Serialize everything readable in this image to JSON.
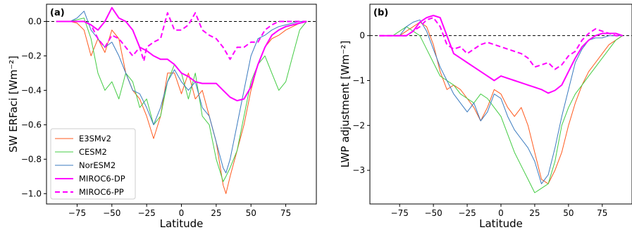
{
  "chart_data": [
    {
      "type": "line",
      "panel_label": "(a)",
      "xlabel": "Latitude",
      "ylabel": "SW ERFaci [Wm⁻²]",
      "xlim": [
        -97,
        97
      ],
      "ylim": [
        -1.06,
        0.1
      ],
      "xticks": [
        -75,
        -50,
        -25,
        0,
        25,
        50,
        75
      ],
      "xtick_labels": [
        "−75",
        "−50",
        "−25",
        "0",
        "25",
        "50",
        "75"
      ],
      "yticks": [
        0.0,
        -0.2,
        -0.4,
        -0.6,
        -0.8,
        -1.0
      ],
      "ytick_labels": [
        "0.0",
        "−0.2",
        "−0.4",
        "−0.6",
        "−0.8",
        "−1.0"
      ],
      "zero_line": true,
      "legend": "lower-left",
      "series": [
        {
          "name": "E3SMv2",
          "color": "#ff5a1e",
          "style": "solid",
          "width": 1,
          "x": [
            -90,
            -80,
            -75,
            -70,
            -65,
            -60,
            -55,
            -50,
            -45,
            -40,
            -35,
            -30,
            -25,
            -20,
            -15,
            -10,
            -5,
            0,
            5,
            10,
            15,
            20,
            25,
            30,
            32,
            35,
            40,
            45,
            50,
            55,
            60,
            65,
            70,
            75,
            80,
            85,
            90
          ],
          "y": [
            0,
            0,
            -0.01,
            -0.05,
            -0.2,
            -0.1,
            -0.18,
            -0.05,
            -0.1,
            -0.3,
            -0.4,
            -0.45,
            -0.55,
            -0.68,
            -0.55,
            -0.3,
            -0.3,
            -0.42,
            -0.3,
            -0.45,
            -0.4,
            -0.55,
            -0.7,
            -0.95,
            -1.0,
            -0.9,
            -0.75,
            -0.6,
            -0.4,
            -0.25,
            -0.15,
            -0.1,
            -0.08,
            -0.05,
            -0.03,
            -0.01,
            0
          ]
        },
        {
          "name": "CESM2",
          "color": "#44cc44",
          "style": "solid",
          "width": 1,
          "x": [
            -90,
            -80,
            -75,
            -70,
            -65,
            -60,
            -55,
            -50,
            -45,
            -40,
            -35,
            -30,
            -25,
            -20,
            -15,
            -10,
            -5,
            0,
            5,
            10,
            15,
            20,
            25,
            30,
            32,
            35,
            40,
            45,
            50,
            55,
            60,
            65,
            70,
            75,
            80,
            85,
            90
          ],
          "y": [
            0,
            0,
            0.01,
            0.02,
            -0.1,
            -0.3,
            -0.4,
            -0.35,
            -0.45,
            -0.3,
            -0.35,
            -0.5,
            -0.45,
            -0.6,
            -0.55,
            -0.35,
            -0.25,
            -0.3,
            -0.45,
            -0.3,
            -0.55,
            -0.6,
            -0.8,
            -0.93,
            -0.9,
            -0.85,
            -0.75,
            -0.55,
            -0.35,
            -0.25,
            -0.2,
            -0.3,
            -0.4,
            -0.35,
            -0.2,
            -0.05,
            0
          ]
        },
        {
          "name": "NorESM2",
          "color": "#3a7abf",
          "style": "solid",
          "width": 1,
          "x": [
            -90,
            -80,
            -75,
            -70,
            -65,
            -60,
            -55,
            -50,
            -45,
            -40,
            -35,
            -30,
            -25,
            -20,
            -15,
            -10,
            -5,
            0,
            5,
            10,
            15,
            20,
            25,
            30,
            32,
            35,
            40,
            45,
            50,
            55,
            60,
            65,
            70,
            75,
            80,
            85,
            90
          ],
          "y": [
            0,
            0,
            0.02,
            0.06,
            -0.05,
            -0.1,
            -0.15,
            -0.12,
            -0.2,
            -0.3,
            -0.4,
            -0.42,
            -0.5,
            -0.6,
            -0.5,
            -0.35,
            -0.28,
            -0.35,
            -0.4,
            -0.35,
            -0.5,
            -0.55,
            -0.7,
            -0.85,
            -0.88,
            -0.8,
            -0.6,
            -0.4,
            -0.2,
            -0.1,
            -0.08,
            -0.05,
            -0.03,
            -0.02,
            -0.01,
            0,
            0
          ]
        },
        {
          "name": "MIROC6-DP",
          "color": "#ff00ff",
          "style": "solid",
          "width": 2,
          "x": [
            -90,
            -80,
            -75,
            -70,
            -65,
            -60,
            -55,
            -50,
            -45,
            -40,
            -35,
            -30,
            -25,
            -20,
            -15,
            -10,
            -5,
            0,
            5,
            10,
            15,
            20,
            25,
            30,
            35,
            40,
            45,
            50,
            55,
            60,
            65,
            70,
            75,
            80,
            85,
            90
          ],
          "y": [
            0,
            0,
            0,
            0,
            -0.02,
            -0.05,
            0.0,
            0.08,
            0.02,
            0.0,
            -0.05,
            -0.15,
            -0.17,
            -0.2,
            -0.22,
            -0.22,
            -0.25,
            -0.3,
            -0.32,
            -0.35,
            -0.36,
            -0.36,
            -0.36,
            -0.4,
            -0.44,
            -0.46,
            -0.45,
            -0.38,
            -0.25,
            -0.15,
            -0.08,
            -0.05,
            -0.03,
            -0.02,
            -0.01,
            0
          ]
        },
        {
          "name": "MIROC6-PP",
          "color": "#ff00ff",
          "style": "dashed",
          "width": 2,
          "x": [
            -90,
            -80,
            -75,
            -70,
            -65,
            -60,
            -55,
            -50,
            -45,
            -40,
            -35,
            -30,
            -27,
            -25,
            -20,
            -15,
            -10,
            -5,
            0,
            5,
            10,
            15,
            20,
            25,
            30,
            35,
            40,
            45,
            50,
            55,
            60,
            65,
            70,
            75,
            80,
            85,
            90
          ],
          "y": [
            0,
            0,
            0,
            0,
            -0.02,
            -0.1,
            -0.15,
            -0.08,
            -0.1,
            -0.15,
            -0.2,
            -0.15,
            -0.23,
            -0.15,
            -0.12,
            -0.1,
            0.05,
            -0.05,
            -0.05,
            -0.02,
            0.05,
            -0.05,
            -0.08,
            -0.1,
            -0.15,
            -0.22,
            -0.15,
            -0.15,
            -0.12,
            -0.12,
            -0.05,
            -0.02,
            0,
            0,
            0,
            0,
            0
          ]
        }
      ]
    },
    {
      "type": "line",
      "panel_label": "(b)",
      "xlabel": "Latitude",
      "ylabel": "LWP adjustment [Wm⁻²]",
      "xlim": [
        -97,
        97
      ],
      "ylim": [
        -3.75,
        0.7
      ],
      "xticks": [
        -75,
        -50,
        -25,
        0,
        25,
        50,
        75
      ],
      "xtick_labels": [
        "−75",
        "−50",
        "−25",
        "0",
        "25",
        "50",
        "75"
      ],
      "yticks": [
        0,
        -1,
        -2,
        -3
      ],
      "ytick_labels": [
        "0",
        "−1",
        "−2",
        "−3"
      ],
      "zero_line": true,
      "series": [
        {
          "name": "E3SMv2",
          "color": "#ff5a1e",
          "style": "solid",
          "width": 1,
          "x": [
            -90,
            -80,
            -75,
            -70,
            -65,
            -60,
            -55,
            -50,
            -45,
            -40,
            -35,
            -30,
            -25,
            -20,
            -15,
            -10,
            -5,
            0,
            5,
            10,
            15,
            20,
            25,
            30,
            35,
            40,
            45,
            50,
            55,
            60,
            65,
            70,
            75,
            80,
            85,
            90
          ],
          "y": [
            0,
            0,
            0,
            0.1,
            0.2,
            0.3,
            0.2,
            -0.2,
            -0.8,
            -1.2,
            -1.1,
            -1.2,
            -1.4,
            -1.6,
            -1.9,
            -1.6,
            -1.2,
            -1.3,
            -1.6,
            -1.8,
            -1.6,
            -2.0,
            -2.6,
            -3.2,
            -3.3,
            -3.0,
            -2.6,
            -2.0,
            -1.5,
            -1.1,
            -0.8,
            -0.6,
            -0.4,
            -0.2,
            -0.1,
            0
          ]
        },
        {
          "name": "CESM2",
          "color": "#44cc44",
          "style": "solid",
          "width": 1,
          "x": [
            -90,
            -80,
            -75,
            -70,
            -65,
            -60,
            -55,
            -50,
            -45,
            -40,
            -35,
            -30,
            -25,
            -20,
            -15,
            -10,
            -5,
            0,
            5,
            10,
            15,
            20,
            25,
            30,
            35,
            40,
            45,
            50,
            55,
            60,
            65,
            70,
            75,
            80,
            85,
            90
          ],
          "y": [
            0,
            0,
            0.1,
            0.2,
            0.1,
            0.0,
            -0.3,
            -0.6,
            -0.9,
            -1.0,
            -1.1,
            -1.3,
            -1.4,
            -1.5,
            -1.3,
            -1.4,
            -1.6,
            -1.8,
            -2.2,
            -2.6,
            -2.9,
            -3.2,
            -3.5,
            -3.4,
            -3.3,
            -2.8,
            -2.0,
            -1.6,
            -1.3,
            -1.1,
            -0.9,
            -0.7,
            -0.5,
            -0.3,
            -0.1,
            0
          ]
        },
        {
          "name": "NorESM2",
          "color": "#3a7abf",
          "style": "solid",
          "width": 1,
          "x": [
            -90,
            -80,
            -75,
            -70,
            -65,
            -60,
            -55,
            -50,
            -45,
            -40,
            -35,
            -30,
            -25,
            -20,
            -15,
            -10,
            -5,
            0,
            5,
            10,
            15,
            20,
            25,
            30,
            35,
            40,
            45,
            50,
            55,
            60,
            65,
            70,
            75,
            80,
            85,
            90
          ],
          "y": [
            0,
            0,
            0,
            0.2,
            0.3,
            0.35,
            0.1,
            -0.3,
            -0.7,
            -1.0,
            -1.3,
            -1.5,
            -1.7,
            -1.5,
            -1.9,
            -1.7,
            -1.3,
            -1.4,
            -1.8,
            -2.1,
            -2.3,
            -2.5,
            -2.8,
            -3.3,
            -3.1,
            -2.5,
            -1.8,
            -1.2,
            -0.6,
            -0.3,
            -0.1,
            -0.05,
            -0.05,
            0,
            0,
            0
          ]
        },
        {
          "name": "MIROC6-DP",
          "color": "#ff00ff",
          "style": "solid",
          "width": 2,
          "x": [
            -90,
            -80,
            -75,
            -70,
            -65,
            -60,
            -55,
            -50,
            -45,
            -40,
            -35,
            -30,
            -25,
            -20,
            -15,
            -10,
            -5,
            0,
            5,
            10,
            15,
            20,
            25,
            30,
            35,
            40,
            45,
            50,
            55,
            60,
            65,
            70,
            75,
            80,
            85,
            90
          ],
          "y": [
            0,
            0,
            0,
            0,
            0.1,
            0.3,
            0.4,
            0.45,
            0.4,
            0.0,
            -0.4,
            -0.5,
            -0.6,
            -0.7,
            -0.8,
            -0.9,
            -1.0,
            -0.9,
            -0.95,
            -1.0,
            -1.05,
            -1.1,
            -1.15,
            -1.2,
            -1.28,
            -1.22,
            -1.1,
            -0.8,
            -0.5,
            -0.25,
            -0.1,
            0,
            0.05,
            0.05,
            0.05,
            0
          ]
        },
        {
          "name": "MIROC6-PP",
          "color": "#ff00ff",
          "style": "dashed",
          "width": 2,
          "x": [
            -90,
            -80,
            -75,
            -70,
            -65,
            -60,
            -55,
            -50,
            -45,
            -40,
            -35,
            -30,
            -25,
            -20,
            -15,
            -10,
            -5,
            0,
            5,
            10,
            15,
            20,
            25,
            30,
            35,
            40,
            45,
            50,
            55,
            60,
            65,
            70,
            75,
            80,
            85,
            90
          ],
          "y": [
            0,
            0,
            0,
            0,
            0.1,
            0.2,
            0.35,
            0.4,
            0.2,
            -0.2,
            -0.3,
            -0.25,
            -0.4,
            -0.3,
            -0.2,
            -0.15,
            -0.2,
            -0.25,
            -0.3,
            -0.35,
            -0.4,
            -0.5,
            -0.7,
            -0.65,
            -0.6,
            -0.75,
            -0.65,
            -0.45,
            -0.35,
            -0.1,
            0.05,
            0.15,
            0.1,
            0.05,
            0,
            0
          ]
        }
      ]
    }
  ]
}
